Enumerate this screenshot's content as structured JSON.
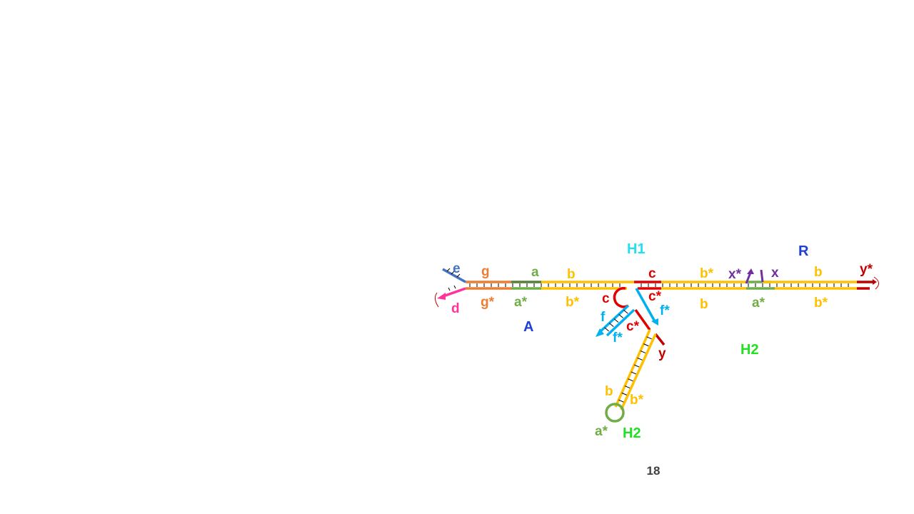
{
  "colors": {
    "orange": "#ED7D31",
    "green": "#70AD47",
    "dark_green": "#548235",
    "gold": "#FFC000",
    "red": "#E00000",
    "dark_red": "#C00000",
    "cyan": "#00B0F0",
    "purple": "#7030A0",
    "steel_blue": "#4472C4",
    "pink": "#FF3399",
    "label_blue": "#1F3FD6",
    "bright_green": "#22E022",
    "bright_cyan": "#22E0F0"
  },
  "labels": {
    "e": "e",
    "d": "d",
    "g": "g",
    "g_star": "g*",
    "a": "a",
    "a_star": "a*",
    "b": "b",
    "b_star": "b*",
    "c": "c",
    "c_star": "c*",
    "f": "f",
    "f_star": "f*",
    "x": "x",
    "x_star": "x*",
    "y": "y",
    "y_star": "y*"
  },
  "complex_names": {
    "A": "A",
    "H1": "H1",
    "R": "R",
    "H2": "H2"
  },
  "page_number": "18"
}
